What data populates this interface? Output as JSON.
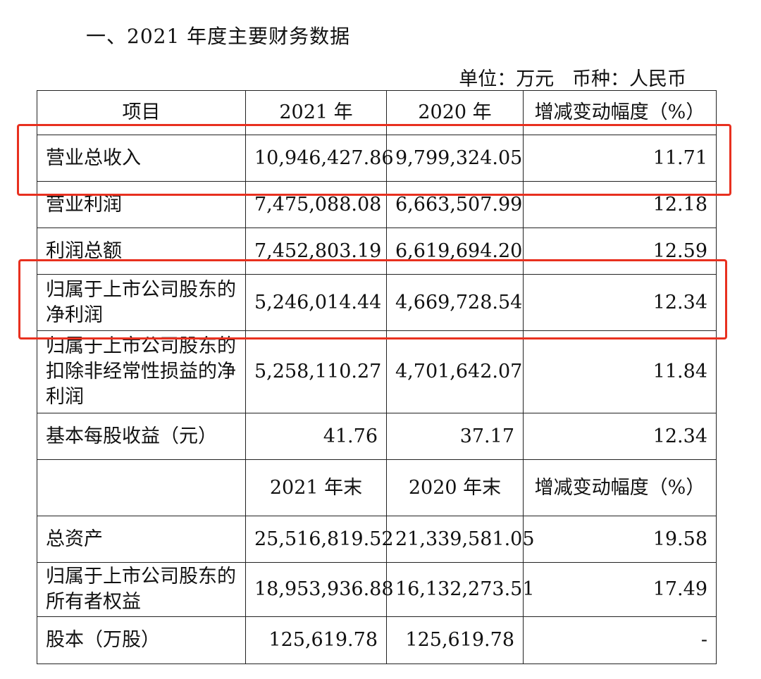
{
  "title": "一、2021 年度主要财务数据",
  "unit_line": "单位：万元   币种：人民币",
  "header": [
    "项目",
    "2021 年",
    "2020 年",
    "增减变动幅度（%）"
  ],
  "rows": [
    {
      "item": "营业总收入",
      "y2021": "10,946,427.86",
      "y2020": "9,799,324.05",
      "change": "11.71"
    },
    {
      "item": "营业利润",
      "y2021": "7,475,088.08",
      "y2020": "6,663,507.99",
      "change": "12.18"
    },
    {
      "item": "利润总额",
      "y2021": "7,452,803.19",
      "y2020": "6,619,694.20",
      "change": "12.59"
    },
    {
      "item": "归属于上市公司股东的净利润",
      "y2021": "5,246,014.44",
      "y2020": "4,669,728.54",
      "change": "12.34"
    },
    {
      "item": "归属于上市公司股东的扣除非经常性损益的净利润",
      "y2021": "5,258,110.27",
      "y2020": "4,701,642.07",
      "change": "11.84"
    },
    {
      "item": "基本每股收益（元）",
      "y2021": "41.76",
      "y2020": "37.17",
      "change": "12.34"
    }
  ],
  "header2": [
    "",
    "2021 年末",
    "2020 年末",
    "增减变动幅度（%）"
  ],
  "rows2": [
    {
      "item": "总资产",
      "y2021": "25,516,819.52",
      "y2020": "21,339,581.05",
      "change": "19.58"
    },
    {
      "item": "归属于上市公司股东的所有者权益",
      "y2021": "18,953,936.88",
      "y2020": "16,132,273.51",
      "change": "17.49"
    },
    {
      "item": "股本（万股）",
      "y2021": "125,619.78",
      "y2020": "125,619.78",
      "change": "-"
    }
  ],
  "highlight_color": "#e8301f"
}
